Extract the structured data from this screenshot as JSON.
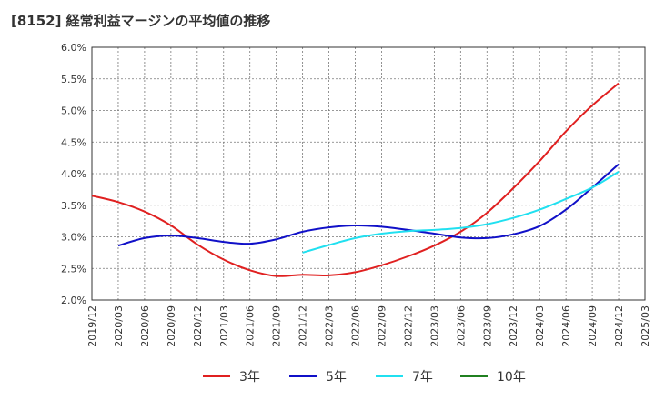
{
  "chart_data": {
    "type": "line",
    "title": "[8152]  経常利益マージンの平均値の推移",
    "xlabel": "",
    "ylabel": "",
    "ylim": [
      2.0,
      6.0
    ],
    "y_ticks": [
      "2.0%",
      "2.5%",
      "3.0%",
      "3.5%",
      "4.0%",
      "4.5%",
      "5.0%",
      "5.5%",
      "6.0%"
    ],
    "x_ticks": [
      "2019/12",
      "2020/03",
      "2020/06",
      "2020/09",
      "2020/12",
      "2021/03",
      "2021/06",
      "2021/09",
      "2021/12",
      "2022/03",
      "2022/06",
      "2022/09",
      "2022/12",
      "2023/03",
      "2023/06",
      "2023/09",
      "2023/12",
      "2024/03",
      "2024/06",
      "2024/09",
      "2024/12",
      "2025/03"
    ],
    "grid": true,
    "legend_placement": "bottom",
    "series": [
      {
        "name": "3年",
        "color": "#e02020",
        "points": [
          [
            "2019/12",
            3.65
          ],
          [
            "2020/03",
            3.55
          ],
          [
            "2020/06",
            3.4
          ],
          [
            "2020/09",
            3.18
          ],
          [
            "2020/12",
            2.88
          ],
          [
            "2021/03",
            2.64
          ],
          [
            "2021/06",
            2.47
          ],
          [
            "2021/09",
            2.38
          ],
          [
            "2021/12",
            2.4
          ],
          [
            "2022/03",
            2.39
          ],
          [
            "2022/06",
            2.44
          ],
          [
            "2022/09",
            2.55
          ],
          [
            "2022/12",
            2.69
          ],
          [
            "2023/03",
            2.86
          ],
          [
            "2023/06",
            3.08
          ],
          [
            "2023/09",
            3.38
          ],
          [
            "2023/12",
            3.77
          ],
          [
            "2024/03",
            4.2
          ],
          [
            "2024/06",
            4.67
          ],
          [
            "2024/09",
            5.08
          ],
          [
            "2024/12",
            5.43
          ]
        ]
      },
      {
        "name": "5年",
        "color": "#1010c8",
        "points": [
          [
            "2020/03",
            2.86
          ],
          [
            "2020/06",
            2.98
          ],
          [
            "2020/09",
            3.02
          ],
          [
            "2020/12",
            2.98
          ],
          [
            "2021/03",
            2.92
          ],
          [
            "2021/06",
            2.89
          ],
          [
            "2021/09",
            2.96
          ],
          [
            "2021/12",
            3.08
          ],
          [
            "2022/03",
            3.15
          ],
          [
            "2022/06",
            3.18
          ],
          [
            "2022/09",
            3.16
          ],
          [
            "2022/12",
            3.11
          ],
          [
            "2023/03",
            3.05
          ],
          [
            "2023/06",
            2.99
          ],
          [
            "2023/09",
            2.98
          ],
          [
            "2023/12",
            3.04
          ],
          [
            "2024/03",
            3.17
          ],
          [
            "2024/06",
            3.43
          ],
          [
            "2024/09",
            3.78
          ],
          [
            "2024/12",
            4.15
          ]
        ]
      },
      {
        "name": "7年",
        "color": "#20e0f0",
        "points": [
          [
            "2021/12",
            2.75
          ],
          [
            "2022/03",
            2.87
          ],
          [
            "2022/06",
            2.98
          ],
          [
            "2022/09",
            3.05
          ],
          [
            "2022/12",
            3.09
          ],
          [
            "2023/03",
            3.11
          ],
          [
            "2023/06",
            3.14
          ],
          [
            "2023/09",
            3.2
          ],
          [
            "2023/12",
            3.3
          ],
          [
            "2024/03",
            3.43
          ],
          [
            "2024/06",
            3.6
          ],
          [
            "2024/09",
            3.78
          ],
          [
            "2024/12",
            4.03
          ]
        ]
      },
      {
        "name": "10年",
        "color": "#208020",
        "points": []
      }
    ]
  }
}
